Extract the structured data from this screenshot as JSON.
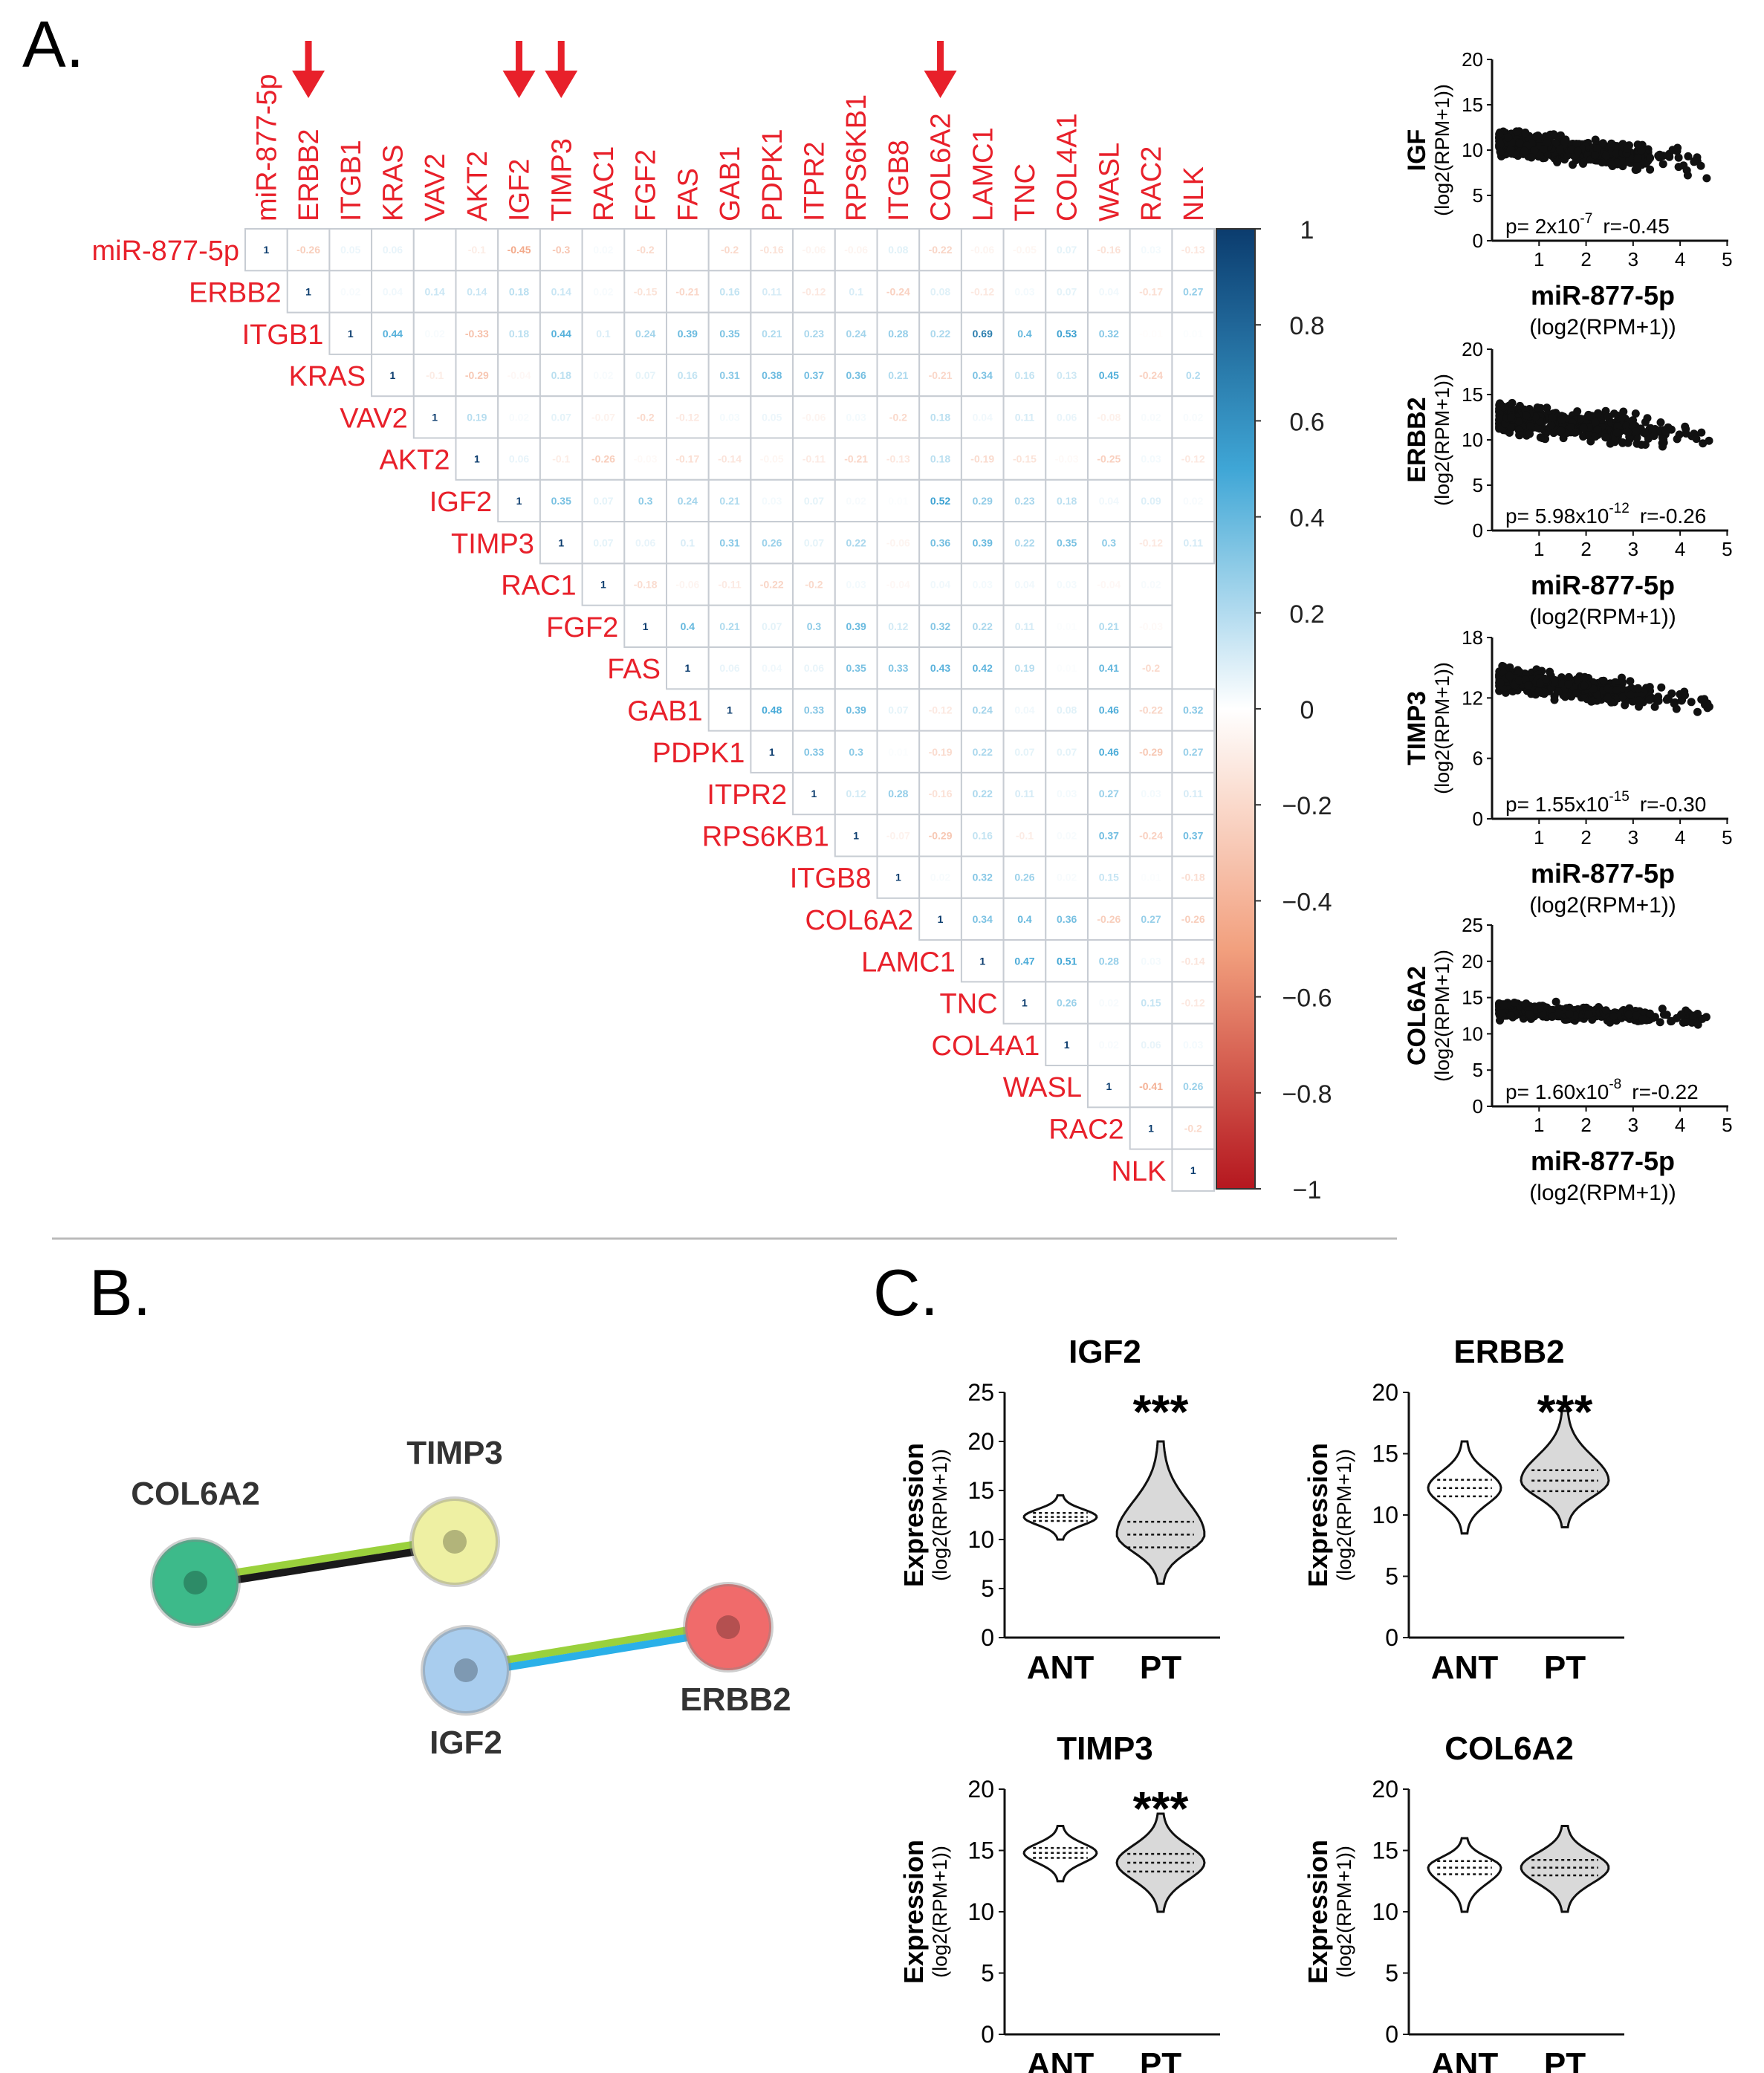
{
  "panel_labels": {
    "a": "A.",
    "b": "B.",
    "c": "C."
  },
  "heatmap": {
    "labels": [
      "miR-877-5p",
      "ERBB2",
      "ITGB1",
      "KRAS",
      "VAV2",
      "AKT2",
      "IGF2",
      "TIMP3",
      "RAC1",
      "FGF2",
      "FAS",
      "GAB1",
      "PDPK1",
      "ITPR2",
      "RPS6KB1",
      "ITGB8",
      "COL6A2",
      "LAMC1",
      "TNC",
      "COL4A1",
      "WASL",
      "RAC2",
      "NLK"
    ],
    "highlighted": [
      "ERBB2",
      "IGF2",
      "TIMP3",
      "COL6A2"
    ],
    "colorbar_ticks": [
      "1",
      "0.8",
      "0.6",
      "0.4",
      "0.2",
      "0",
      "−0.2",
      "−0.4",
      "−0.6",
      "−0.8",
      "−1"
    ],
    "colors": {
      "label": "#e8202a",
      "arrow": "#e8202a",
      "positive": "#0b3c6e",
      "mid_positive": "#3fa6d6",
      "negative": "#b5171f",
      "mid_negative": "#f2a07e"
    },
    "rows": [
      [
        1,
        -0.26,
        0.05,
        0.06,
        0,
        -0.1,
        -0.45,
        -0.3,
        0.02,
        -0.2,
        0,
        -0.2,
        -0.16,
        -0.06,
        -0.06,
        0.08,
        -0.22,
        -0.06,
        -0.05,
        0.07,
        -0.16,
        0.03,
        -0.13
      ],
      [
        1,
        0.02,
        0.04,
        0.14,
        0.14,
        0.18,
        0.14,
        0.02,
        -0.15,
        -0.21,
        0.16,
        0.11,
        -0.12,
        0.1,
        -0.24,
        0.08,
        -0.12,
        0.03,
        0.07,
        0.04,
        -0.17,
        0.27
      ],
      [
        1,
        0.44,
        0.02,
        -0.33,
        0.18,
        0.44,
        0.1,
        0.24,
        0.39,
        0.35,
        0.21,
        0.23,
        0.24,
        0.28,
        0.22,
        0.69,
        0.4,
        0.53,
        0.32,
        -0.01,
        0.01
      ],
      [
        1,
        -0.1,
        -0.29,
        -0.04,
        0.18,
        0.02,
        0.07,
        0.16,
        0.31,
        0.38,
        0.37,
        0.36,
        0.21,
        -0.21,
        0.34,
        0.16,
        0.13,
        0.45,
        -0.24,
        0.2
      ],
      [
        1,
        0.19,
        0.02,
        0.07,
        -0.07,
        -0.2,
        -0.12,
        0.03,
        0.05,
        -0.06,
        0.03,
        -0.2,
        0.18,
        0.04,
        0.11,
        0.06,
        -0.08,
        0.02,
        0.02
      ],
      [
        1,
        0.06,
        -0.1,
        -0.26,
        -0.03,
        -0.17,
        -0.14,
        -0.05,
        -0.11,
        -0.21,
        -0.13,
        0.18,
        -0.19,
        -0.15,
        -0.03,
        -0.25,
        0.03,
        -0.12
      ],
      [
        1,
        0.35,
        0.07,
        0.3,
        0.24,
        0.21,
        0.03,
        0.07,
        0.02,
        0.01,
        0.52,
        0.29,
        0.23,
        0.18,
        0.04,
        0.09,
        0.02
      ],
      [
        1,
        0.07,
        0.06,
        0.1,
        0.31,
        0.26,
        0.07,
        0.22,
        -0.06,
        0.36,
        0.39,
        0.22,
        0.35,
        0.3,
        -0.12,
        0.11
      ],
      [
        1,
        -0.18,
        -0.06,
        -0.11,
        -0.22,
        -0.2,
        0.03,
        -0.04,
        0.04,
        0.03,
        0.04,
        0.03,
        -0.04,
        0.02
      ],
      [
        1,
        0.4,
        0.21,
        0.07,
        0.3,
        0.39,
        0.12,
        0.32,
        0.22,
        0.11,
        0.01,
        0.21,
        -0.03
      ],
      [
        1,
        0.06,
        0.04,
        0.06,
        0.35,
        0.33,
        0.43,
        0.42,
        0.19,
        0.01,
        0.41,
        -0.2
      ],
      [
        1,
        0.48,
        0.33,
        0.39,
        0.07,
        -0.12,
        0.24,
        0.04,
        0.08,
        0.46,
        -0.22,
        0.32
      ],
      [
        1,
        0.33,
        0.3,
        0.01,
        -0.19,
        0.22,
        0.07,
        0.07,
        0.46,
        -0.29,
        0.27
      ],
      [
        1,
        0.12,
        0.28,
        -0.16,
        0.22,
        0.11,
        0.03,
        0.27,
        0.03,
        0.11
      ],
      [
        1,
        -0.07,
        -0.29,
        0.16,
        -0.1,
        0.02,
        0.37,
        -0.24,
        0.37
      ],
      [
        1,
        0.02,
        0.32,
        0.26,
        0.02,
        0.15,
        0.01,
        -0.18
      ],
      [
        1,
        0.34,
        0.4,
        0.36,
        -0.26,
        0.27,
        -0.26
      ],
      [
        1,
        0.47,
        0.51,
        0.28,
        0.03,
        -0.14
      ],
      [
        1,
        0.26,
        0.02,
        0.15,
        -0.12
      ],
      [
        1,
        0.02,
        0.06,
        0.03
      ],
      [
        1,
        -0.41,
        0.26
      ],
      [
        1,
        -0.2
      ],
      [
        1
      ]
    ]
  },
  "scatter_panels": [
    {
      "gene": "IGF",
      "y_ticks": [
        "20",
        "15",
        "10",
        "5",
        "0"
      ],
      "x_ticks": [
        "1",
        "2",
        "3",
        "4",
        "5"
      ],
      "ylabel_unit": "(log2(RPM+1))",
      "p_base": "p= 2x10",
      "p_exp": "-7",
      "r_text": "r=-0.45",
      "xlabel": "miR-877-5p",
      "xlabel_unit": "(log2(RPM+1))"
    },
    {
      "gene": "ERBB2",
      "y_ticks": [
        "20",
        "15",
        "10",
        "5",
        "0"
      ],
      "x_ticks": [
        "1",
        "2",
        "3",
        "4",
        "5"
      ],
      "ylabel_unit": "(log2(RPM+1))",
      "p_base": "p= 5.98x10",
      "p_exp": "-12",
      "r_text": "r=-0.26",
      "xlabel": "miR-877-5p",
      "xlabel_unit": "(log2(RPM+1))"
    },
    {
      "gene": "TIMP3",
      "y_ticks": [
        "18",
        "12",
        "6",
        "0"
      ],
      "x_ticks": [
        "1",
        "2",
        "3",
        "4",
        "5"
      ],
      "ylabel_unit": "(log2(RPM+1))",
      "p_base": "p= 1.55x10",
      "p_exp": "-15",
      "r_text": "r=-0.30",
      "xlabel": "miR-877-5p",
      "xlabel_unit": "(log2(RPM+1))"
    },
    {
      "gene": "COL6A2",
      "y_ticks": [
        "25",
        "20",
        "15",
        "10",
        "5",
        "0"
      ],
      "x_ticks": [
        "1",
        "2",
        "3",
        "4",
        "5"
      ],
      "ylabel_unit": "(log2(RPM+1))",
      "p_base": "p= 1.60x10",
      "p_exp": "-8",
      "r_text": "r=-0.22",
      "xlabel": "miR-877-5p",
      "xlabel_unit": "(log2(RPM+1))"
    }
  ],
  "network": {
    "nodes": [
      "COL6A2",
      "TIMP3",
      "IGF2",
      "ERBB2"
    ],
    "node_colors": {
      "COL6A2": "#3dba8a",
      "TIMP3": "#eef0a3",
      "IGF2": "#a9cdee",
      "ERBB2": "#f06b6b"
    },
    "edge_colors": {
      "green": "#9ad13c",
      "black": "#1a1a1a",
      "blue": "#2ab0e8"
    }
  },
  "violin_panels": [
    {
      "title": "IGF2",
      "y_ticks": [
        "25",
        "20",
        "15",
        "10",
        "5",
        "0"
      ],
      "ymax": 25,
      "ylabel": "Expression",
      "ylabel_unit": "(log2(RPM+1))",
      "groups": [
        "ANT",
        "PT"
      ],
      "stars": "***",
      "ant": {
        "min": 10,
        "max": 14.5,
        "median": 12.3
      },
      "pt": {
        "min": 5.5,
        "max": 20,
        "median": 10.5
      }
    },
    {
      "title": "ERBB2",
      "y_ticks": [
        "20",
        "15",
        "10",
        "5",
        "0"
      ],
      "ymax": 20,
      "ylabel": "Expression",
      "ylabel_unit": "(log2(RPM+1))",
      "groups": [
        "ANT",
        "PT"
      ],
      "stars": "***",
      "ant": {
        "min": 8.5,
        "max": 16,
        "median": 12.2
      },
      "pt": {
        "min": 9,
        "max": 18.5,
        "median": 12.8
      }
    },
    {
      "title": "TIMP3",
      "y_ticks": [
        "20",
        "15",
        "10",
        "5",
        "0"
      ],
      "ymax": 20,
      "ylabel": "Expression",
      "ylabel_unit": "(log2(RPM+1))",
      "groups": [
        "ANT",
        "PT"
      ],
      "stars": "***",
      "ant": {
        "min": 12.5,
        "max": 17,
        "median": 14.8
      },
      "pt": {
        "min": 10,
        "max": 18,
        "median": 14
      }
    },
    {
      "title": "COL6A2",
      "y_ticks": [
        "20",
        "15",
        "10",
        "5",
        "0"
      ],
      "ymax": 20,
      "ylabel": "Expression",
      "ylabel_unit": "(log2(RPM+1))",
      "groups": [
        "ANT",
        "PT"
      ],
      "stars": "",
      "ant": {
        "min": 10,
        "max": 16,
        "median": 13.6
      },
      "pt": {
        "min": 10,
        "max": 17,
        "median": 13.6
      }
    }
  ]
}
